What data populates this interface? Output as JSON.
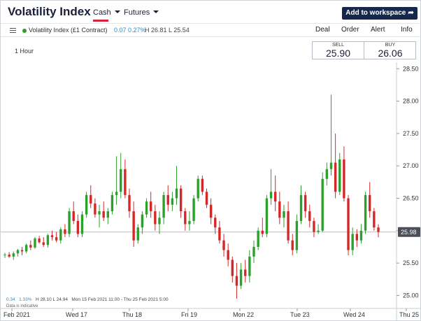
{
  "header": {
    "title": "Volatility Index",
    "tabs": [
      "Cash",
      "Futures"
    ],
    "workspace_button": "Add to workspace"
  },
  "toolbar": {
    "instrument": "Volatility Index (£1 Contract)",
    "change": "0.07",
    "change_pct": "0.27%",
    "high_low": "H 26.81  L 25.54",
    "menu": [
      "Deal",
      "Order",
      "Alert",
      "Info"
    ]
  },
  "interval": "1 Hour",
  "prices": {
    "sell_label": "SELL",
    "sell": "25.90",
    "buy_label": "BUY",
    "buy": "26.06",
    "current_marker": "25.98"
  },
  "stats": {
    "change": "0.34",
    "change_pct": "1.33%",
    "high_low": "H 28.10  L 24.94",
    "range": "Mon 15 Feb 2021 11:00 - Thu 25 Feb 2021 5:00",
    "note": "Data is indicative"
  },
  "colors": {
    "up": "#2ca02c",
    "down": "#d62728",
    "accent": "#d6253a",
    "button": "#15284b",
    "link": "#2b8bd0"
  },
  "chart_data": {
    "type": "candlestick",
    "interval": "1 Hour",
    "ylim": [
      24.8,
      28.6
    ],
    "yticks": [
      "28.50",
      "28.00",
      "27.50",
      "27.00",
      "26.50",
      "26.00",
      "25.50",
      "25.00"
    ],
    "x_labels": [
      "Feb 2021",
      "Wed 17",
      "Thu 18",
      "Fri 19",
      "Mon 22",
      "Tue 23",
      "Wed 24",
      "Thu 25"
    ],
    "current_price": 25.98,
    "candles": [
      [
        25.62,
        25.66,
        25.58,
        25.63
      ],
      [
        25.63,
        25.67,
        25.58,
        25.6
      ],
      [
        25.6,
        25.68,
        25.55,
        25.65
      ],
      [
        25.65,
        25.72,
        25.6,
        25.7
      ],
      [
        25.7,
        25.75,
        25.62,
        25.68
      ],
      [
        25.68,
        25.8,
        25.65,
        25.78
      ],
      [
        25.78,
        25.85,
        25.7,
        25.74
      ],
      [
        25.74,
        25.9,
        25.72,
        25.88
      ],
      [
        25.88,
        25.92,
        25.8,
        25.82
      ],
      [
        25.82,
        25.9,
        25.75,
        25.78
      ],
      [
        25.78,
        25.95,
        25.74,
        25.93
      ],
      [
        25.93,
        26.0,
        25.85,
        25.9
      ],
      [
        25.9,
        25.98,
        25.82,
        25.85
      ],
      [
        25.85,
        26.05,
        25.8,
        26.02
      ],
      [
        26.02,
        26.1,
        25.9,
        25.95
      ],
      [
        25.95,
        26.35,
        25.9,
        26.3
      ],
      [
        26.3,
        26.45,
        26.1,
        26.15
      ],
      [
        26.15,
        26.25,
        25.9,
        25.95
      ],
      [
        25.95,
        26.3,
        25.9,
        26.25
      ],
      [
        26.25,
        26.6,
        26.2,
        26.55
      ],
      [
        26.55,
        26.7,
        26.35,
        26.42
      ],
      [
        26.42,
        26.5,
        26.2,
        26.25
      ],
      [
        26.25,
        26.4,
        26.05,
        26.3
      ],
      [
        26.3,
        26.45,
        26.15,
        26.2
      ],
      [
        26.2,
        26.35,
        26.1,
        26.3
      ],
      [
        26.3,
        26.6,
        26.25,
        26.55
      ],
      [
        26.55,
        27.15,
        26.4,
        26.6
      ],
      [
        26.6,
        27.2,
        26.5,
        26.95
      ],
      [
        26.95,
        27.1,
        26.5,
        26.55
      ],
      [
        26.55,
        26.65,
        26.2,
        26.3
      ],
      [
        26.3,
        26.45,
        25.75,
        25.85
      ],
      [
        25.85,
        26.1,
        25.8,
        26.05
      ],
      [
        26.05,
        26.3,
        25.95,
        26.25
      ],
      [
        26.25,
        26.5,
        26.2,
        26.45
      ],
      [
        26.45,
        26.6,
        26.2,
        26.3
      ],
      [
        26.3,
        26.4,
        26.0,
        26.1
      ],
      [
        26.1,
        26.3,
        25.95,
        26.2
      ],
      [
        26.2,
        26.6,
        26.1,
        26.55
      ],
      [
        26.55,
        26.7,
        26.3,
        26.4
      ],
      [
        26.4,
        26.6,
        26.3,
        26.5
      ],
      [
        26.5,
        27.0,
        26.4,
        26.65
      ],
      [
        26.65,
        26.7,
        26.2,
        26.3
      ],
      [
        26.3,
        26.35,
        26.0,
        26.1
      ],
      [
        26.1,
        26.3,
        26.0,
        26.15
      ],
      [
        26.15,
        26.55,
        26.1,
        26.5
      ],
      [
        26.5,
        26.85,
        26.45,
        26.8
      ],
      [
        26.8,
        26.85,
        26.55,
        26.6
      ],
      [
        26.6,
        26.65,
        26.35,
        26.4
      ],
      [
        26.4,
        26.5,
        26.1,
        26.2
      ],
      [
        26.2,
        26.25,
        25.95,
        26.05
      ],
      [
        26.05,
        26.15,
        25.8,
        25.85
      ],
      [
        25.85,
        25.95,
        25.6,
        25.7
      ],
      [
        25.7,
        25.8,
        25.45,
        25.55
      ],
      [
        25.55,
        25.6,
        25.2,
        25.3
      ],
      [
        25.3,
        25.5,
        24.95,
        25.15
      ],
      [
        25.15,
        25.5,
        25.1,
        25.4
      ],
      [
        25.4,
        25.55,
        25.2,
        25.3
      ],
      [
        25.3,
        25.7,
        25.2,
        25.6
      ],
      [
        25.6,
        25.85,
        25.5,
        25.75
      ],
      [
        25.75,
        26.05,
        25.7,
        26.0
      ],
      [
        26.0,
        26.2,
        25.9,
        25.95
      ],
      [
        25.95,
        26.55,
        25.9,
        26.5
      ],
      [
        26.5,
        26.95,
        26.4,
        26.6
      ],
      [
        26.6,
        26.85,
        26.3,
        26.45
      ],
      [
        26.45,
        26.6,
        26.1,
        26.2
      ],
      [
        26.2,
        26.4,
        26.05,
        26.3
      ],
      [
        26.3,
        26.45,
        25.8,
        25.85
      ],
      [
        25.85,
        25.95,
        25.62,
        25.7
      ],
      [
        25.7,
        26.25,
        25.65,
        26.15
      ],
      [
        26.15,
        26.7,
        26.1,
        26.55
      ],
      [
        26.55,
        26.6,
        26.2,
        26.3
      ],
      [
        26.3,
        26.4,
        26.05,
        26.15
      ],
      [
        26.15,
        26.2,
        25.9,
        25.98
      ],
      [
        25.98,
        26.1,
        25.95,
        26.0
      ],
      [
        26.0,
        26.9,
        25.98,
        26.8
      ],
      [
        26.8,
        27.05,
        26.7,
        26.95
      ],
      [
        26.95,
        28.1,
        26.85,
        27.05
      ],
      [
        27.05,
        27.5,
        26.5,
        26.6
      ],
      [
        26.6,
        27.2,
        26.55,
        27.1
      ],
      [
        27.1,
        27.3,
        26.45,
        26.5
      ],
      [
        26.5,
        26.55,
        25.62,
        25.7
      ],
      [
        25.7,
        26.05,
        25.62,
        25.95
      ],
      [
        25.95,
        26.02,
        25.75,
        25.85
      ],
      [
        25.85,
        26.1,
        25.8,
        26.0
      ],
      [
        26.0,
        26.6,
        25.95,
        26.55
      ],
      [
        26.55,
        26.75,
        26.2,
        26.3
      ],
      [
        26.3,
        26.35,
        26.0,
        26.05
      ],
      [
        26.05,
        26.1,
        25.9,
        25.98
      ]
    ]
  }
}
